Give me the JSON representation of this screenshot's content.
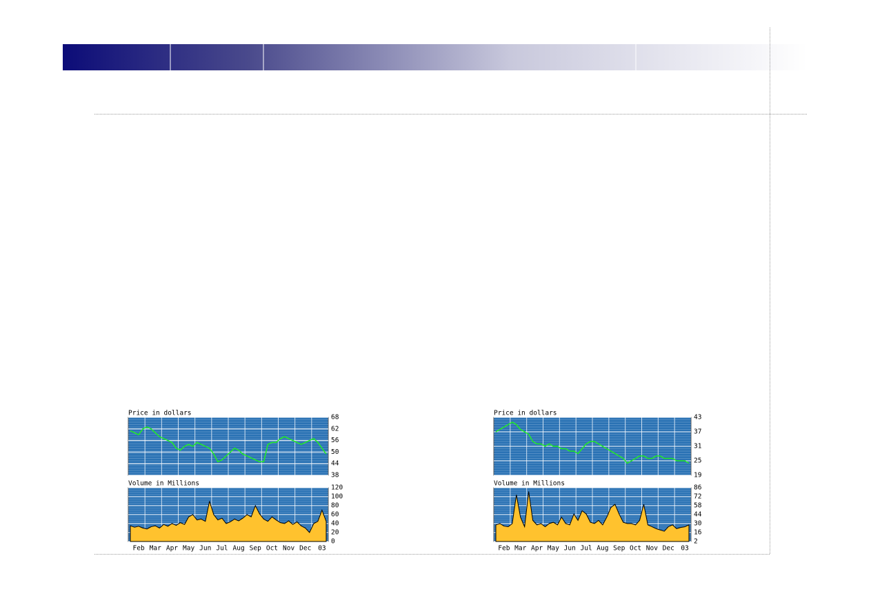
{
  "chart_data": [
    {
      "type": "line",
      "title": "Price in dollars",
      "color": "#22ee22",
      "ylim": [
        38,
        68
      ],
      "yticks": [
        38,
        44,
        50,
        56,
        62,
        68
      ],
      "grid": true,
      "values": [
        61,
        60,
        59,
        62,
        63,
        62,
        60,
        58,
        57,
        56,
        55,
        52,
        51,
        53,
        54,
        53,
        55,
        54,
        53,
        52,
        49,
        45,
        46,
        48,
        50,
        52,
        51,
        49,
        48,
        47,
        46,
        45,
        45,
        54,
        55,
        55,
        57,
        58,
        57,
        56,
        55,
        54,
        55,
        56,
        57,
        55,
        52,
        49
      ]
    },
    {
      "type": "area",
      "title": "Volume in Millions",
      "color": "#ffc22e",
      "ylim": [
        0,
        120
      ],
      "yticks": [
        0,
        20,
        40,
        60,
        80,
        100,
        120
      ],
      "grid": true,
      "categories": [
        null,
        null,
        "Feb",
        null,
        null,
        null,
        "Mar",
        null,
        null,
        null,
        "Apr",
        null,
        null,
        null,
        "May",
        null,
        null,
        null,
        "Jun",
        null,
        null,
        null,
        "Jul",
        null,
        null,
        null,
        "Aug",
        null,
        null,
        null,
        "Sep",
        null,
        null,
        null,
        "Oct",
        null,
        null,
        null,
        "Nov",
        null,
        null,
        null,
        "Dec",
        null,
        null,
        null,
        "03",
        null
      ],
      "values": [
        35,
        32,
        34,
        30,
        28,
        33,
        35,
        30,
        38,
        34,
        40,
        36,
        42,
        38,
        55,
        60,
        48,
        50,
        45,
        90,
        60,
        48,
        52,
        40,
        44,
        50,
        46,
        52,
        60,
        55,
        80,
        62,
        50,
        45,
        55,
        48,
        42,
        40,
        46,
        38,
        44,
        35,
        30,
        20,
        40,
        45,
        70,
        45
      ]
    },
    {
      "type": "line",
      "title": "Price in dollars",
      "color": "#22ee22",
      "ylim": [
        19,
        43
      ],
      "yticks": [
        19,
        25,
        31,
        37,
        43
      ],
      "grid": true,
      "values": [
        37,
        38,
        39,
        40,
        41,
        40,
        38,
        37,
        36,
        33,
        32,
        32,
        31,
        32,
        31,
        31,
        30,
        30,
        29,
        29,
        28,
        30,
        32,
        33,
        33,
        32,
        31,
        30,
        29,
        28,
        27,
        26,
        24,
        25,
        26,
        27,
        27,
        26,
        26,
        27,
        27,
        26,
        26,
        26,
        25,
        25,
        25,
        24
      ]
    },
    {
      "type": "area",
      "title": "Volume in Millions",
      "color": "#ffc22e",
      "ylim": [
        2,
        86
      ],
      "yticks": [
        2,
        16,
        30,
        44,
        58,
        72,
        86
      ],
      "grid": true,
      "categories": [
        null,
        null,
        "Feb",
        null,
        null,
        null,
        "Mar",
        null,
        null,
        null,
        "Apr",
        null,
        null,
        null,
        "May",
        null,
        null,
        null,
        "Jun",
        null,
        null,
        null,
        "Jul",
        null,
        null,
        null,
        "Aug",
        null,
        null,
        null,
        "Sep",
        null,
        null,
        null,
        "Oct",
        null,
        null,
        null,
        "Nov",
        null,
        null,
        null,
        "Dec",
        null,
        null,
        null,
        "03",
        null
      ],
      "values": [
        28,
        30,
        26,
        25,
        30,
        75,
        40,
        25,
        80,
        35,
        28,
        30,
        25,
        30,
        32,
        28,
        40,
        30,
        28,
        45,
        35,
        50,
        45,
        32,
        30,
        35,
        28,
        40,
        55,
        60,
        45,
        32,
        30,
        30,
        28,
        35,
        60,
        28,
        25,
        22,
        20,
        18,
        25,
        28,
        22,
        24,
        25,
        28
      ]
    }
  ]
}
